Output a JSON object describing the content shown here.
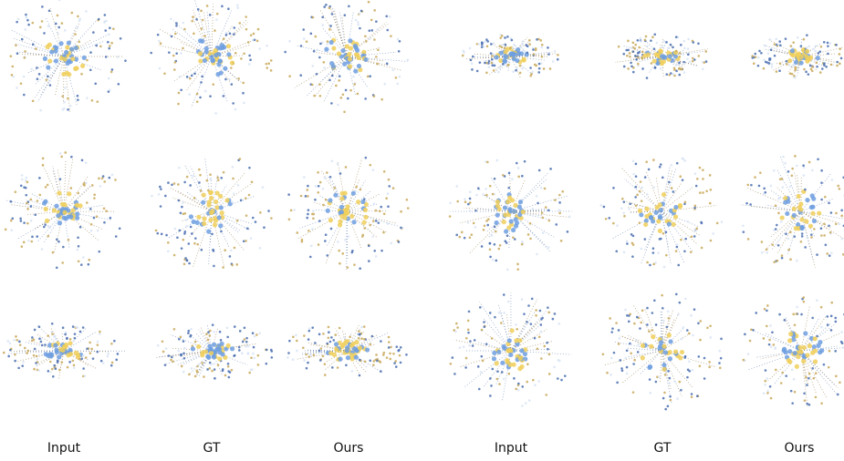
{
  "groups": [
    {
      "columns": [
        "Input",
        "GT",
        "Ours"
      ]
    },
    {
      "columns": [
        "Input",
        "GT",
        "Ours"
      ]
    }
  ]
}
